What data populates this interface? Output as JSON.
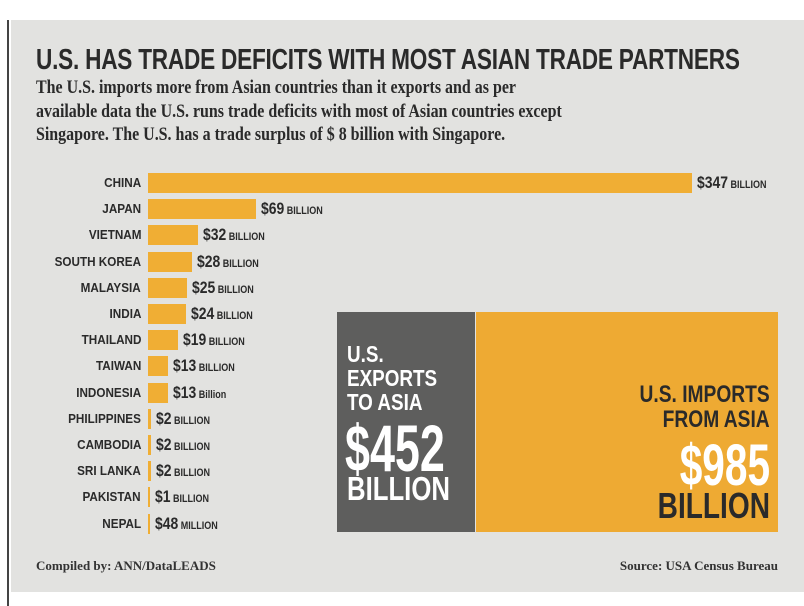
{
  "chart_data": {
    "type": "bar",
    "orientation": "horizontal",
    "title": "U.S. HAS TRADE DEFICITS WITH MOST ASIAN TRADE PARTNERS",
    "subtitle_lines": [
      "The U.S. imports more from Asian countries than it exports and as per",
      "available data the U.S. runs trade deficits with most of Asian countries except",
      "Singapore. The U.S. has a trade surplus of $ 8 billion with Singapore."
    ],
    "unit": "billion USD (trade deficit)",
    "categories": [
      "CHINA",
      "JAPAN",
      "VIETNAM",
      "SOUTH KOREA",
      "MALAYSIA",
      "INDIA",
      "THAILAND",
      "TAIWAN",
      "INDONESIA",
      "PHILIPPINES",
      "CAMBODIA",
      "SRI LANKA",
      "PAKISTAN",
      "NEPAL"
    ],
    "values": [
      347,
      69,
      32,
      28,
      25,
      24,
      19,
      13,
      13,
      2,
      2,
      2,
      1,
      0.048
    ],
    "labels": [
      {
        "amount": "$347",
        "unit": "BILLION"
      },
      {
        "amount": "$69",
        "unit": "BILLION"
      },
      {
        "amount": "$32",
        "unit": "BILLION"
      },
      {
        "amount": "$28",
        "unit": "BILLION"
      },
      {
        "amount": "$25",
        "unit": "BILLION"
      },
      {
        "amount": "$24",
        "unit": "BILLION"
      },
      {
        "amount": "$19",
        "unit": "BILLION"
      },
      {
        "amount": "$13",
        "unit": "BILLION"
      },
      {
        "amount": "$13",
        "unit": "Billion"
      },
      {
        "amount": "$2",
        "unit": "BILLION"
      },
      {
        "amount": "$2",
        "unit": "BILLION"
      },
      {
        "amount": "$2",
        "unit": "BILLION"
      },
      {
        "amount": "$1",
        "unit": "BILLION"
      },
      {
        "amount": "$48",
        "unit": "MILLION"
      }
    ],
    "bar_color": "#f0ae34",
    "totals": {
      "exports": {
        "label_lines": [
          "U.S.",
          "EXPORTS",
          "TO ASIA"
        ],
        "amount": "$452",
        "unit": "BILLION",
        "value": 452,
        "color": "#5e5e5d"
      },
      "imports": {
        "label_lines": [
          "U.S. IMPORTS",
          "FROM ASIA"
        ],
        "amount": "$985",
        "unit": "BILLION",
        "value": 985,
        "color": "#eeaa33"
      }
    },
    "footer": {
      "compiled": "Compiled by: ANN/DataLEADS",
      "source": "Source:  USA Census Bureau"
    }
  }
}
